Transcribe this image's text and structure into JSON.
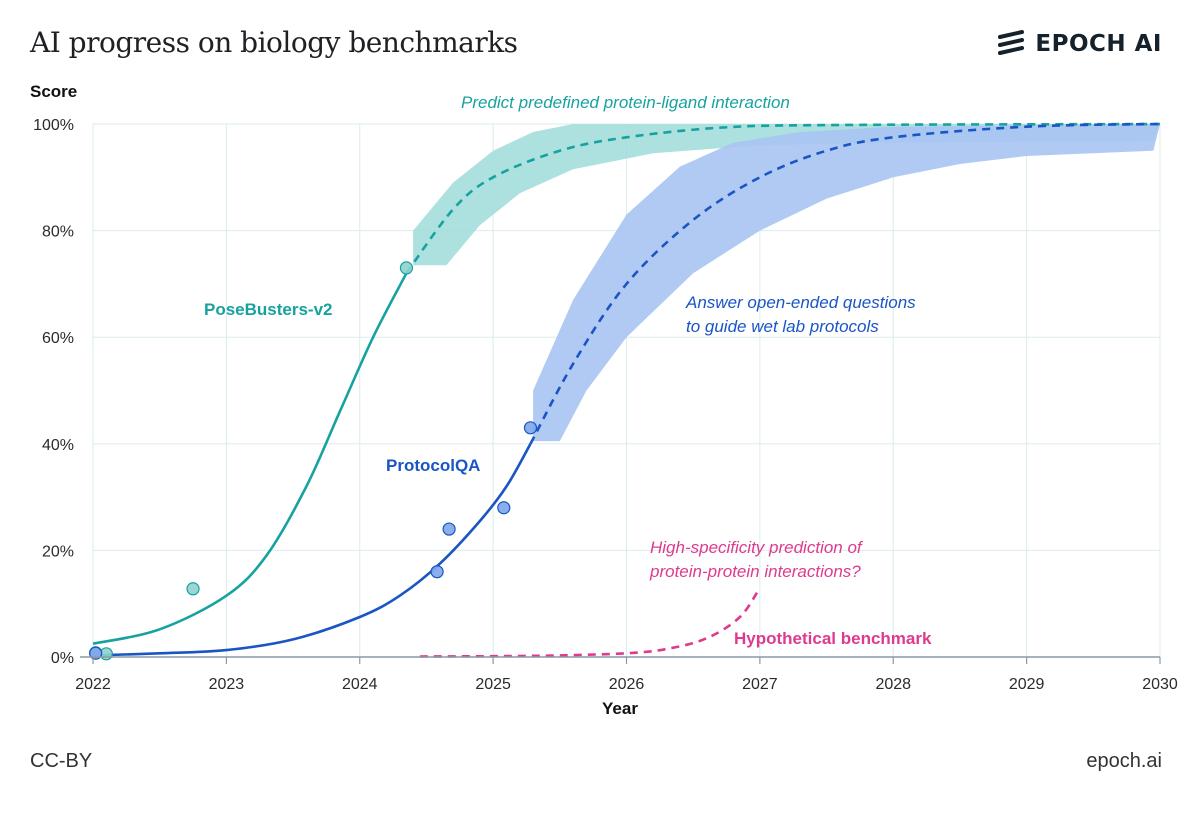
{
  "header": {
    "title": "AI progress on biology benchmarks",
    "brand": "EPOCH AI"
  },
  "footer": {
    "license": "CC-BY",
    "site": "epoch.ai"
  },
  "colors": {
    "teal": "#17a2a0",
    "teal_band": "#9fdcd9",
    "blue": "#1a55c4",
    "blue_band": "#a9c4f2",
    "pink": "#de3a8e",
    "grid": "#dcebee"
  },
  "chart_data": {
    "type": "line",
    "ylabel": "Score",
    "xlabel": "Year",
    "xlim": [
      2022,
      2030
    ],
    "ylim": [
      0,
      100
    ],
    "x_ticks": [
      "2022",
      "2023",
      "2024",
      "2025",
      "2026",
      "2027",
      "2028",
      "2029",
      "2030"
    ],
    "y_ticks": [
      "0%",
      "20%",
      "40%",
      "60%",
      "80%",
      "100%"
    ],
    "grid": true,
    "series": [
      {
        "name": "PoseBusters-v2",
        "color": "#17a2a0",
        "fit_line": [
          [
            2022.0,
            2.5
          ],
          [
            2022.5,
            5.2
          ],
          [
            2023.0,
            11.5
          ],
          [
            2023.3,
            19
          ],
          [
            2023.6,
            32
          ],
          [
            2023.85,
            46
          ],
          [
            2024.1,
            60
          ],
          [
            2024.35,
            72
          ]
        ],
        "forecast": [
          [
            2024.35,
            72
          ],
          [
            2024.7,
            84
          ],
          [
            2025.0,
            90
          ],
          [
            2025.5,
            95
          ],
          [
            2026.0,
            97.5
          ],
          [
            2026.7,
            99.3
          ],
          [
            2027.5,
            99.8
          ],
          [
            2030.0,
            100
          ]
        ],
        "band_upper": [
          [
            2024.4,
            80
          ],
          [
            2024.7,
            89
          ],
          [
            2025.0,
            95
          ],
          [
            2025.3,
            98.5
          ],
          [
            2025.6,
            100
          ],
          [
            2030.0,
            100
          ]
        ],
        "band_lower": [
          [
            2024.4,
            73.5
          ],
          [
            2024.65,
            73.5
          ],
          [
            2024.9,
            81
          ],
          [
            2025.2,
            87
          ],
          [
            2025.6,
            91.5
          ],
          [
            2026.2,
            94.5
          ],
          [
            2027.0,
            96
          ],
          [
            2028.0,
            96.5
          ],
          [
            2029.95,
            96.8
          ]
        ],
        "points": [
          [
            2022.02,
            0.8
          ],
          [
            2022.1,
            0.6
          ],
          [
            2022.75,
            12.8
          ],
          [
            2024.35,
            73
          ]
        ]
      },
      {
        "name": "ProtocolQA",
        "color": "#1a55c4",
        "fit_line": [
          [
            2022.0,
            0.3
          ],
          [
            2022.5,
            0.7
          ],
          [
            2023.0,
            1.3
          ],
          [
            2023.5,
            3.3
          ],
          [
            2024.0,
            7.5
          ],
          [
            2024.3,
            11.5
          ],
          [
            2024.6,
            17.5
          ],
          [
            2024.9,
            25.5
          ],
          [
            2025.1,
            32
          ],
          [
            2025.28,
            40
          ]
        ],
        "forecast": [
          [
            2025.28,
            40
          ],
          [
            2025.6,
            55
          ],
          [
            2026.0,
            70
          ],
          [
            2026.5,
            82
          ],
          [
            2027.0,
            90
          ],
          [
            2027.5,
            95
          ],
          [
            2028.0,
            97.5
          ],
          [
            2029.0,
            99.5
          ],
          [
            2030.0,
            100
          ]
        ],
        "band_upper": [
          [
            2025.3,
            50
          ],
          [
            2025.6,
            67
          ],
          [
            2026.0,
            83
          ],
          [
            2026.4,
            92
          ],
          [
            2026.8,
            96.5
          ],
          [
            2027.3,
            98.5
          ],
          [
            2028.0,
            99.5
          ],
          [
            2030.0,
            100
          ]
        ],
        "band_lower": [
          [
            2025.3,
            40.5
          ],
          [
            2025.5,
            40.5
          ],
          [
            2025.7,
            50
          ],
          [
            2026.0,
            60
          ],
          [
            2026.5,
            72
          ],
          [
            2027.0,
            80
          ],
          [
            2027.5,
            86
          ],
          [
            2028.0,
            90
          ],
          [
            2028.5,
            92.5
          ],
          [
            2029.0,
            94
          ],
          [
            2029.95,
            95
          ]
        ],
        "points": [
          [
            2022.02,
            0.7
          ],
          [
            2024.58,
            16
          ],
          [
            2024.67,
            24
          ],
          [
            2025.08,
            28
          ],
          [
            2025.28,
            43
          ]
        ]
      },
      {
        "name": "Hypothetical benchmark",
        "color": "#de3a8e",
        "forecast": [
          [
            2024.45,
            0.1
          ],
          [
            2025.0,
            0.15
          ],
          [
            2025.5,
            0.3
          ],
          [
            2026.0,
            0.7
          ],
          [
            2026.3,
            1.5
          ],
          [
            2026.6,
            3.5
          ],
          [
            2026.85,
            7.5
          ],
          [
            2027.0,
            13
          ]
        ]
      }
    ],
    "annotations": [
      {
        "text": "Predict predefined protein-ligand interaction",
        "color": "#17a2a0"
      },
      {
        "text": "Answer open-ended questions",
        "color": "#1a55c4"
      },
      {
        "text": "to guide wet lab protocols",
        "color": "#1a55c4"
      },
      {
        "text": "High-specificity prediction of",
        "color": "#de3a8e"
      },
      {
        "text": "protein-protein interactions?",
        "color": "#de3a8e"
      }
    ]
  }
}
